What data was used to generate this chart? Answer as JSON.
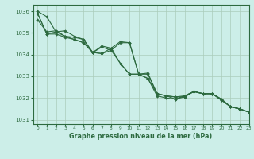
{
  "title": "Graphe pression niveau de la mer (hPa)",
  "bg_color": "#cceee8",
  "grid_color": "#aaccbb",
  "line_color": "#2d6a3f",
  "marker_color": "#2d6a3f",
  "xlim": [
    -0.5,
    23
  ],
  "ylim": [
    1030.8,
    1036.3
  ],
  "yticks": [
    1031,
    1032,
    1033,
    1034,
    1035,
    1036
  ],
  "xticks": [
    0,
    1,
    2,
    3,
    4,
    5,
    6,
    7,
    8,
    9,
    10,
    11,
    12,
    13,
    14,
    15,
    16,
    17,
    18,
    19,
    20,
    21,
    22,
    23
  ],
  "series": [
    [
      1036.0,
      1035.75,
      1035.05,
      1035.1,
      1034.85,
      1034.7,
      1034.1,
      1034.35,
      1034.2,
      1034.55,
      1034.55,
      1033.1,
      1033.1,
      1032.2,
      1032.1,
      1032.05,
      1032.1,
      1032.3,
      1032.2,
      1032.2,
      1031.9,
      1031.6,
      1031.5,
      1031.35
    ],
    [
      1035.6,
      1035.05,
      1035.1,
      1034.85,
      1034.8,
      1034.7,
      1034.1,
      1034.4,
      1034.3,
      1034.6,
      1034.55,
      1033.1,
      1033.15,
      1032.2,
      1032.1,
      1032.05,
      1032.05,
      1032.3,
      1032.2,
      1032.2,
      1031.95,
      1031.6,
      1031.5,
      1031.35
    ],
    [
      1035.9,
      1034.95,
      1035.05,
      1034.85,
      1034.7,
      1034.55,
      1034.1,
      1034.05,
      1034.2,
      1033.6,
      1033.1,
      1033.1,
      1032.9,
      1032.2,
      1032.1,
      1031.95,
      1032.05,
      1032.3,
      1032.2,
      1032.2,
      1031.9,
      1031.6,
      1031.5,
      1031.35
    ],
    [
      1035.9,
      1034.95,
      1034.95,
      1034.8,
      1034.7,
      1034.55,
      1034.1,
      1034.05,
      1034.3,
      1033.6,
      1033.1,
      1033.1,
      1032.9,
      1032.1,
      1032.0,
      1031.95,
      1032.1,
      1032.3,
      1032.2,
      1032.2,
      1031.95,
      1031.6,
      1031.5,
      1031.35
    ]
  ]
}
